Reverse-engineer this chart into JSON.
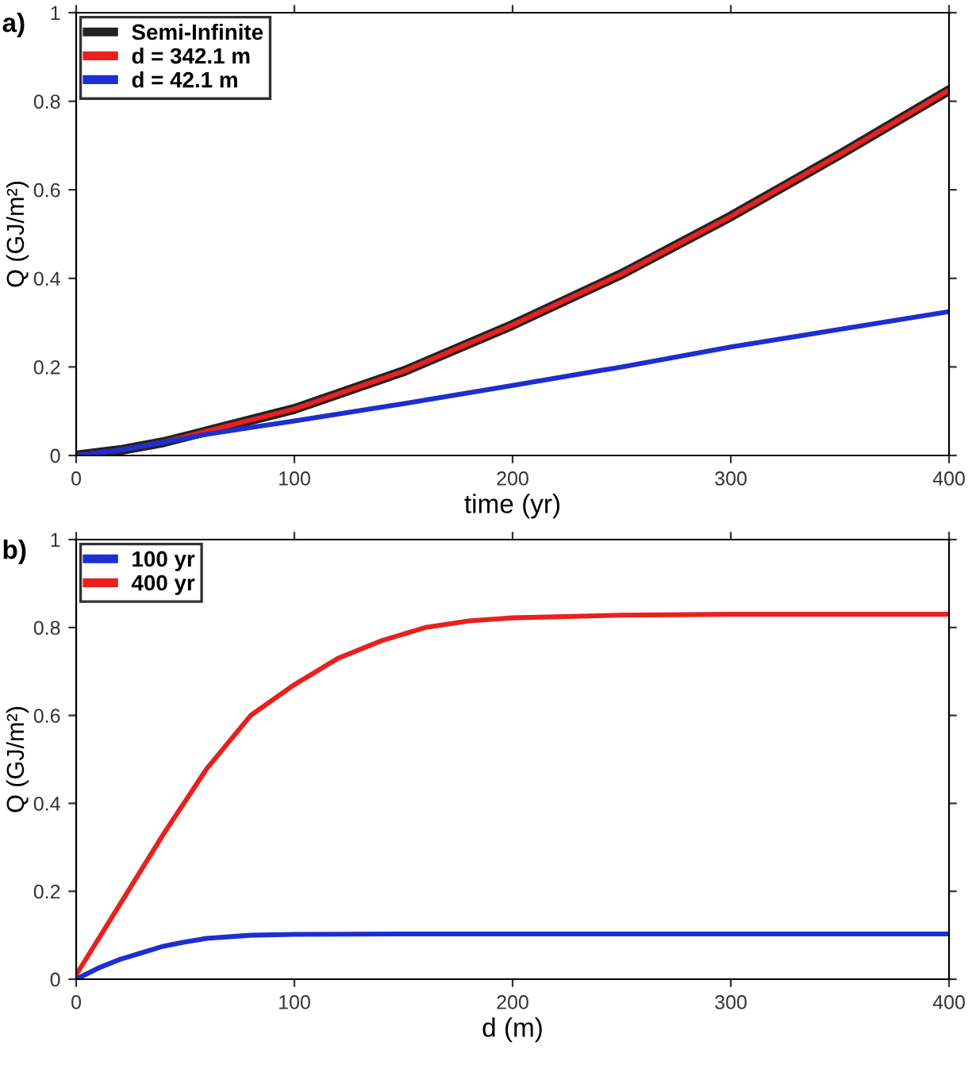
{
  "chart_data": [
    {
      "type": "line",
      "title": "a)",
      "xlabel": "time (yr)",
      "ylabel": "Q (GJ/m²)",
      "xlim": [
        0,
        400
      ],
      "ylim": [
        0,
        1
      ],
      "xticks": [
        0,
        100,
        200,
        300,
        400
      ],
      "yticks": [
        0,
        0.2,
        0.4,
        0.6,
        0.8,
        1
      ],
      "grid": false,
      "legend": "top left",
      "x": [
        0,
        20,
        40,
        60,
        80,
        100,
        150,
        200,
        250,
        300,
        350,
        400
      ],
      "series": [
        {
          "name": "Semi-Infinite",
          "color": "#222222",
          "values": [
            0,
            0.012,
            0.03,
            0.055,
            0.08,
            0.105,
            0.19,
            0.295,
            0.41,
            0.54,
            0.68,
            0.825
          ]
        },
        {
          "name": "d = 342.1 m",
          "color": "#e8211e",
          "values": [
            0,
            0.012,
            0.03,
            0.055,
            0.08,
            0.105,
            0.19,
            0.295,
            0.41,
            0.54,
            0.68,
            0.825
          ]
        },
        {
          "name": "d = 42.1 m",
          "color": "#1c2fd0",
          "values": [
            0,
            0.012,
            0.03,
            0.048,
            0.063,
            0.078,
            0.117,
            0.158,
            0.2,
            0.245,
            0.285,
            0.325
          ]
        }
      ]
    },
    {
      "type": "line",
      "title": "b)",
      "xlabel": "d (m)",
      "ylabel": "Q (GJ/m²)",
      "xlim": [
        0,
        400
      ],
      "ylim": [
        0,
        1
      ],
      "xticks": [
        0,
        100,
        200,
        300,
        400
      ],
      "yticks": [
        0,
        0.2,
        0.4,
        0.6,
        0.8,
        1
      ],
      "grid": false,
      "legend": "top left",
      "series": [
        {
          "name": "100 yr",
          "color": "#1c2fd0",
          "x": [
            0,
            10,
            20,
            30,
            40,
            50,
            60,
            80,
            100,
            150,
            400
          ],
          "values": [
            0,
            0.025,
            0.045,
            0.06,
            0.075,
            0.085,
            0.093,
            0.1,
            0.102,
            0.103,
            0.103
          ]
        },
        {
          "name": "400 yr",
          "color": "#e8211e",
          "x": [
            0,
            20,
            40,
            60,
            80,
            100,
            120,
            140,
            160,
            180,
            200,
            250,
            300,
            400
          ],
          "values": [
            0.01,
            0.17,
            0.33,
            0.48,
            0.6,
            0.67,
            0.73,
            0.77,
            0.8,
            0.815,
            0.822,
            0.828,
            0.83,
            0.83
          ]
        }
      ]
    }
  ]
}
